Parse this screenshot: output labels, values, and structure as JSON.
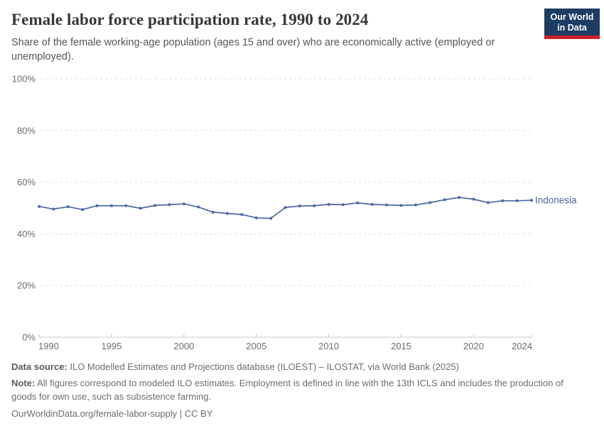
{
  "header": {
    "title": "Female labor force participation rate, 1990 to 2024",
    "subtitle": "Share of the female working-age population (ages 15 and over) who are economically active (employed or unemployed).",
    "logo": {
      "line1": "Our World",
      "line2": "in Data"
    }
  },
  "chart_data": {
    "type": "line",
    "title": "Female labor force participation rate, 1990 to 2024",
    "xlabel": "",
    "ylabel": "",
    "ylim": [
      0,
      100
    ],
    "grid": "horizontal-dashed",
    "legend_position": "end-of-line",
    "x": [
      1990,
      1991,
      1992,
      1993,
      1994,
      1995,
      1996,
      1997,
      1998,
      1999,
      2000,
      2001,
      2002,
      2003,
      2004,
      2005,
      2006,
      2007,
      2008,
      2009,
      2010,
      2011,
      2012,
      2013,
      2014,
      2015,
      2016,
      2017,
      2018,
      2019,
      2020,
      2021,
      2022,
      2023,
      2024
    ],
    "series": [
      {
        "name": "Indonesia",
        "values": [
          50.6,
          49.6,
          50.5,
          49.4,
          50.9,
          50.9,
          50.9,
          49.9,
          51.0,
          51.3,
          51.6,
          50.4,
          48.4,
          47.9,
          47.5,
          46.2,
          46.0,
          50.2,
          50.8,
          50.9,
          51.4,
          51.3,
          52.0,
          51.4,
          51.2,
          51.0,
          51.2,
          52.1,
          53.2,
          54.1,
          53.4,
          52.1,
          52.8,
          52.8,
          53.0
        ]
      }
    ],
    "xticks": [
      1990,
      1995,
      2000,
      2005,
      2010,
      2015,
      2020,
      2024
    ],
    "yticks": [
      0,
      20,
      40,
      60,
      80,
      100
    ],
    "ytick_format": "{v}%"
  },
  "footer": {
    "datasource_label": "Data source:",
    "datasource_text": " ILO Modelled Estimates and Projections database (ILOEST) – ILOSTAT, via World Bank (2025)",
    "note_label": "Note:",
    "note_text": " All figures correspond to modeled ILO estimates. Employment is defined in line with the 13th ICLS and includes the production of goods for own use, such as subsistence farming.",
    "cc_line": "OurWorldinData.org/female-labor-supply | CC BY"
  },
  "colors": {
    "line": "#4a68a3",
    "grid": "#dedede",
    "axis": "#c8c8c8",
    "axis_text": "#6d6d6d",
    "logo_navy": "#1d3d63",
    "logo_red": "#cc2127"
  }
}
